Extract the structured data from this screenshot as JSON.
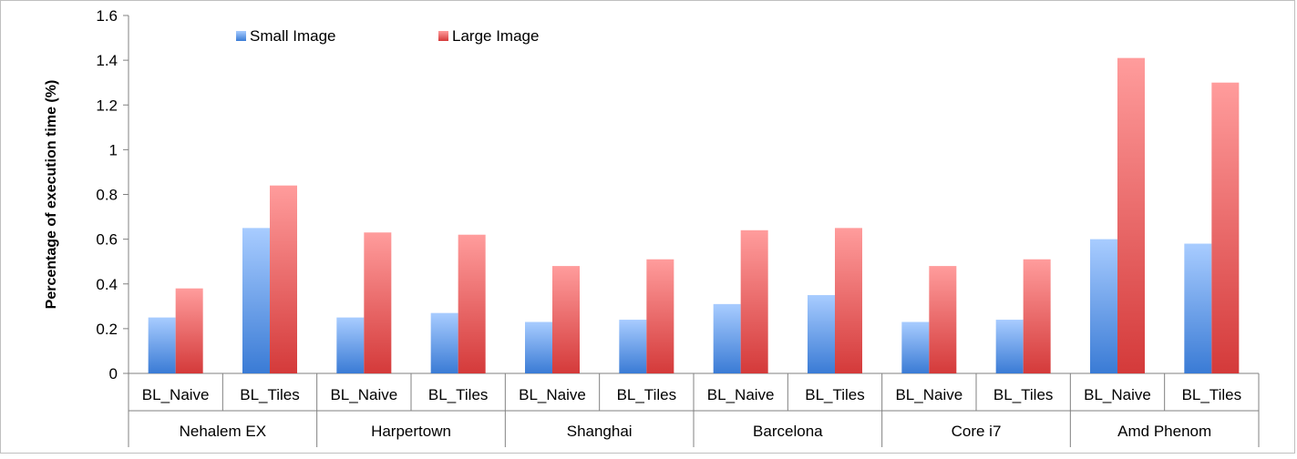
{
  "chart_data": {
    "type": "bar",
    "ylabel": "Percentage of execution time (%)",
    "ylim": [
      0,
      1.6
    ],
    "yticks": [
      0,
      0.2,
      0.4,
      0.6,
      0.8,
      1,
      1.2,
      1.4,
      1.6
    ],
    "ytick_labels": [
      "0",
      "0.2",
      "0.4",
      "0.6",
      "0.8",
      "1",
      "1.2",
      "1.4",
      "1.6"
    ],
    "legend_position": "top-left",
    "grid": false,
    "groups": [
      {
        "label": "Nehalem EX",
        "categories": [
          "BL_Naive",
          "BL_Tiles"
        ]
      },
      {
        "label": "Harpertown",
        "categories": [
          "BL_Naive",
          "BL_Tiles"
        ]
      },
      {
        "label": "Shanghai",
        "categories": [
          "BL_Naive",
          "BL_Tiles"
        ]
      },
      {
        "label": "Barcelona",
        "categories": [
          "BL_Naive",
          "BL_Tiles"
        ]
      },
      {
        "label": "Core i7",
        "categories": [
          "BL_Naive",
          "BL_Tiles"
        ]
      },
      {
        "label": "Amd Phenom",
        "categories": [
          "BL_Naive",
          "BL_Tiles"
        ]
      }
    ],
    "series": [
      {
        "name": "Small Image",
        "color": "#4f81bd",
        "values": [
          0.25,
          0.65,
          0.25,
          0.27,
          0.23,
          0.24,
          0.31,
          0.35,
          0.23,
          0.24,
          0.6,
          0.58
        ]
      },
      {
        "name": "Large Image",
        "color": "#c0504d",
        "values": [
          0.38,
          0.84,
          0.63,
          0.62,
          0.48,
          0.51,
          0.64,
          0.65,
          0.48,
          0.51,
          1.41,
          1.3
        ]
      }
    ]
  }
}
